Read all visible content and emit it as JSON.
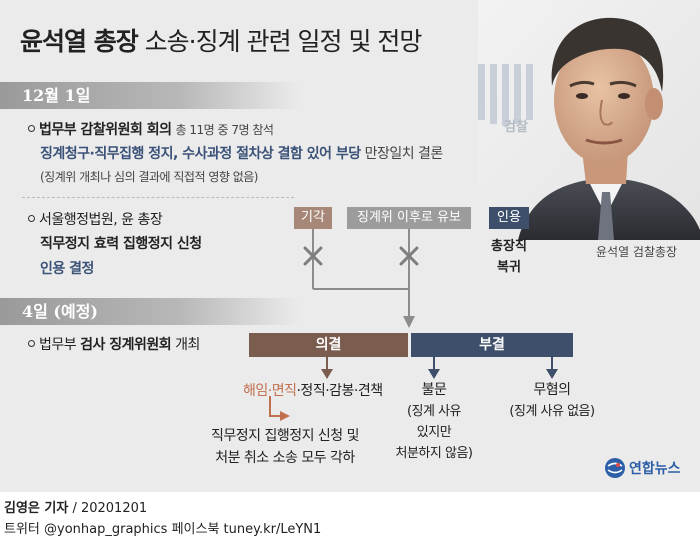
{
  "title": {
    "bold": "윤석열 총장",
    "light": "소송·징계 관련 일정 및 전망"
  },
  "dates": {
    "d1": "12월 1일",
    "d2": "4일 (예정)"
  },
  "item1": {
    "bold": "법무부 감찰위원회 회의",
    "rest": "총 11명 중 7명 참석",
    "line2_bold": "징계청구·직무집행 정지, 수사과정 절차상 결함 있어 부당",
    "line2_rest": "만장일치 결론",
    "line3": "(징계위 개최나 심의 결과에 직접적 영향 없음)"
  },
  "item2": {
    "line1": "서울행정법원, 윤 총장",
    "line2": "직무정지 효력 집행정지 신청",
    "line3": "인용 결정"
  },
  "outcomes": {
    "reject": "기각",
    "defer": "징계위 이후로 유보",
    "accept": "인용"
  },
  "accept_result": {
    "line1": "총장직",
    "line2": "복귀"
  },
  "item3": {
    "pre": "법무부",
    "bold": "검사 징계위원회",
    "post": "개최"
  },
  "decision": {
    "resolve": "의결",
    "reject": "부결"
  },
  "penalties": {
    "highlight": "해임·면직",
    "rest": "·정직·감봉·견책"
  },
  "penalty_result": {
    "line1": "직무정지 집행정지 신청 및",
    "line2": "처분 취소 소송 모두 각하"
  },
  "nonprosecution": {
    "title": "불문",
    "line1": "(징계 사유",
    "line2": "있지만",
    "line3": "처분하지 않음)"
  },
  "nofault": {
    "title": "무혐의",
    "line1": "(징계 사유 없음)"
  },
  "photo": {
    "caption": "윤석열 검찰총장",
    "logo_text": "검찰"
  },
  "brand": {
    "name": "연합뉴스"
  },
  "footer": {
    "line1_bold": "김영은 기자",
    "line1_rest": " / 20201201",
    "line2": "트위터 @yonhap_graphics  페이스북 tuney.kr/LeYN1"
  },
  "colors": {
    "brown": "#7b5d50",
    "brown_light": "#a78878",
    "gray_tag": "#9c9c9c",
    "navy": "#3d4f6a",
    "blue_text": "#3b5278",
    "orange": "#c0704e",
    "line_gray": "#8c8c8c"
  }
}
